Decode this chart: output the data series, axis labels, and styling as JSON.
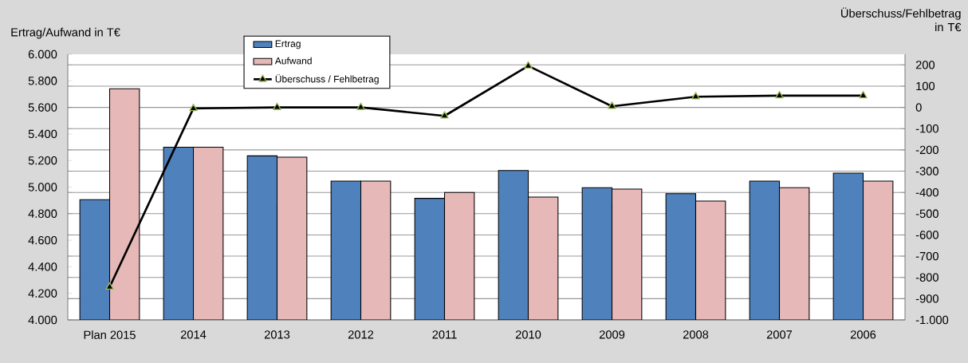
{
  "chart_data": {
    "type": "bar",
    "ylabel": "Ertrag/Aufwand in T€",
    "y2label": "Überschuss/Fehlbetrag in T€",
    "categories": [
      "Plan 2015",
      "2014",
      "2013",
      "2012",
      "2011",
      "2010",
      "2009",
      "2008",
      "2007",
      "2006"
    ],
    "series": [
      {
        "name": "Ertrag",
        "color": "#4f81bd",
        "values": [
          4905,
          5300,
          5235,
          5045,
          4915,
          5125,
          4995,
          4950,
          5045,
          5105
        ]
      },
      {
        "name": "Aufwand",
        "color": "#e6b9b8",
        "values": [
          5740,
          5300,
          5225,
          5045,
          4960,
          4925,
          4985,
          4895,
          4995,
          5045
        ]
      },
      {
        "name": "Überschuss / Fehlbetrag",
        "type": "line",
        "axis": "y2",
        "color": "#000000",
        "marker": "triangle",
        "values": [
          -845,
          -5,
          0,
          0,
          -40,
          195,
          5,
          50,
          55,
          55
        ]
      }
    ],
    "ylim": [
      4000,
      6000
    ],
    "yticks": [
      {
        "value": 4000,
        "label": "4.000"
      },
      {
        "value": 4200,
        "label": "4.200"
      },
      {
        "value": 4400,
        "label": "4.400"
      },
      {
        "value": 4600,
        "label": "4.600"
      },
      {
        "value": 4800,
        "label": "4.800"
      },
      {
        "value": 5000,
        "label": "5.000"
      },
      {
        "value": 5200,
        "label": "5.200"
      },
      {
        "value": 5400,
        "label": "5.400"
      },
      {
        "value": 5600,
        "label": "5.600"
      },
      {
        "value": 5800,
        "label": "5.800"
      },
      {
        "value": 6000,
        "label": "6.000"
      }
    ],
    "y2lim": [
      -1000,
      250
    ],
    "y2ticks": [
      {
        "value": -1000,
        "label": "-1.000"
      },
      -900,
      -800,
      -700,
      -600,
      -500,
      -400,
      -300,
      -200,
      -100,
      0,
      100,
      200
    ],
    "grid": "y",
    "legend": "top"
  }
}
